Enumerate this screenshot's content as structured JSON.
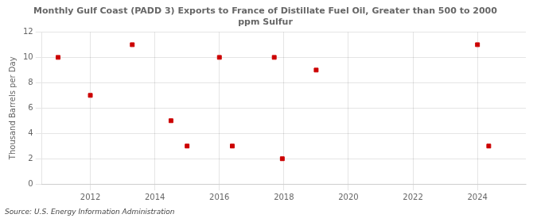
{
  "chart_data": {
    "type": "scatter",
    "title": "Monthly Gulf Coast (PADD 3) Exports to France of Distillate Fuel Oil, Greater than 500 to 2000\nppm Sulfur",
    "y_label": "Thousand Barrels per Day",
    "annotations": [
      "Source: U.S. Energy Information Administration"
    ],
    "x": [
      2011.0,
      2012.0,
      2013.3,
      2014.5,
      2015.0,
      2016.0,
      2016.4,
      2017.7,
      2017.95,
      2019.0,
      2024.0,
      2024.35
    ],
    "values": [
      10,
      7,
      11,
      5,
      3,
      10,
      3,
      10,
      2,
      9,
      11,
      3
    ],
    "color": "#cc0000",
    "marker": "square",
    "xlim": [
      2010.5,
      2025.5
    ],
    "xticks": [
      2012,
      2014,
      2016,
      2018,
      2020,
      2022,
      2024
    ],
    "ylim": [
      0,
      12
    ],
    "yticks": [
      0,
      2,
      4,
      6,
      8,
      10,
      12
    ],
    "grid": true
  }
}
